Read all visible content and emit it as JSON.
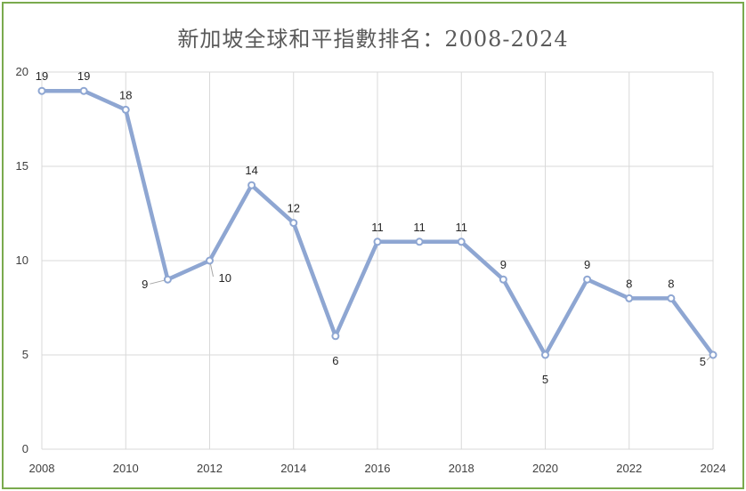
{
  "chart_data": {
    "type": "line",
    "title": "新加坡全球和平指數排名：2008-2024",
    "xlabel": "",
    "ylabel": "",
    "x": [
      2008,
      2009,
      2010,
      2011,
      2012,
      2013,
      2014,
      2015,
      2016,
      2017,
      2018,
      2019,
      2020,
      2021,
      2022,
      2023,
      2024
    ],
    "x_tick_labels": [
      "2008",
      "2010",
      "2012",
      "2014",
      "2016",
      "2018",
      "2020",
      "2022",
      "2024"
    ],
    "y_tick_labels": [
      "0",
      "5",
      "10",
      "15",
      "20"
    ],
    "ylim": [
      0,
      20
    ],
    "xlim": [
      2008,
      2024
    ],
    "grid": true,
    "legend": "none",
    "series": [
      {
        "values": [
          19,
          19,
          18,
          9,
          10,
          14,
          12,
          6,
          11,
          11,
          11,
          9,
          5,
          9,
          8,
          8,
          5
        ],
        "data_labels": [
          "19",
          "19",
          "18",
          "9",
          "10",
          "14",
          "12",
          "6",
          "11",
          "11",
          "11",
          "9",
          "5",
          "9",
          "8",
          "8",
          "5"
        ],
        "color": "#8ea6d2"
      }
    ]
  },
  "colors": {
    "border": "#7aaa4e",
    "grid": "#d9d9d9",
    "line": "#8ea6d2"
  }
}
